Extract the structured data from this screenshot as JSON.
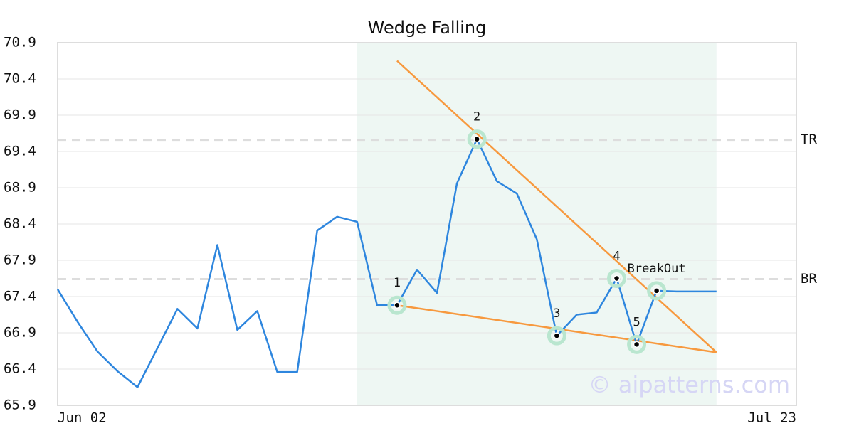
{
  "chart_data": {
    "type": "line",
    "title": "Wedge Falling",
    "x": [
      0,
      1,
      2,
      3,
      4,
      5,
      6,
      7,
      8,
      9,
      10,
      11,
      12,
      13,
      14,
      15,
      16,
      17,
      18,
      19,
      20,
      21,
      22,
      23,
      24,
      25,
      26,
      27,
      28,
      29,
      30,
      31,
      32,
      33
    ],
    "values": [
      67.5,
      67.05,
      66.64,
      66.37,
      66.15,
      66.69,
      67.23,
      66.96,
      68.11,
      66.94,
      67.2,
      66.36,
      66.36,
      68.31,
      68.5,
      68.43,
      67.28,
      67.28,
      67.77,
      67.45,
      68.96,
      69.57,
      68.99,
      68.82,
      68.19,
      66.86,
      67.15,
      67.18,
      67.65,
      66.74,
      67.48,
      67.47,
      67.47,
      67.47
    ],
    "color": "#2e86de",
    "xlim": [
      0,
      37
    ],
    "xticks": [
      {
        "value": 0,
        "label": "Jun 02"
      },
      {
        "value": 37,
        "label": "Jul 23"
      }
    ],
    "ylim": [
      65.9,
      70.9
    ],
    "yticks": [
      65.9,
      66.4,
      66.9,
      67.4,
      67.9,
      68.4,
      68.9,
      69.4,
      69.9,
      70.4,
      70.9
    ],
    "grid": true,
    "shaded_xrange": [
      15,
      33
    ],
    "shade_color": "#eef7f3",
    "trend_lines": [
      {
        "x": [
          17,
          33
        ],
        "values": [
          70.65,
          66.63
        ],
        "color": "#f7993e"
      },
      {
        "x": [
          17,
          33
        ],
        "values": [
          67.28,
          66.63
        ],
        "color": "#f7993e"
      }
    ],
    "levels": [
      {
        "label": "TR",
        "value": 69.56
      },
      {
        "label": "BR",
        "value": 67.64
      }
    ],
    "points": [
      {
        "label": "1",
        "x": 17,
        "value": 67.28
      },
      {
        "label": "2",
        "x": 21,
        "value": 69.57
      },
      {
        "label": "3",
        "x": 25,
        "value": 66.86
      },
      {
        "label": "4",
        "x": 28,
        "value": 67.65
      },
      {
        "label": "5",
        "x": 29,
        "value": 66.74
      },
      {
        "label": "BreakOut",
        "x": 30,
        "value": 67.48
      }
    ],
    "watermark": "© aipatterns.com"
  }
}
